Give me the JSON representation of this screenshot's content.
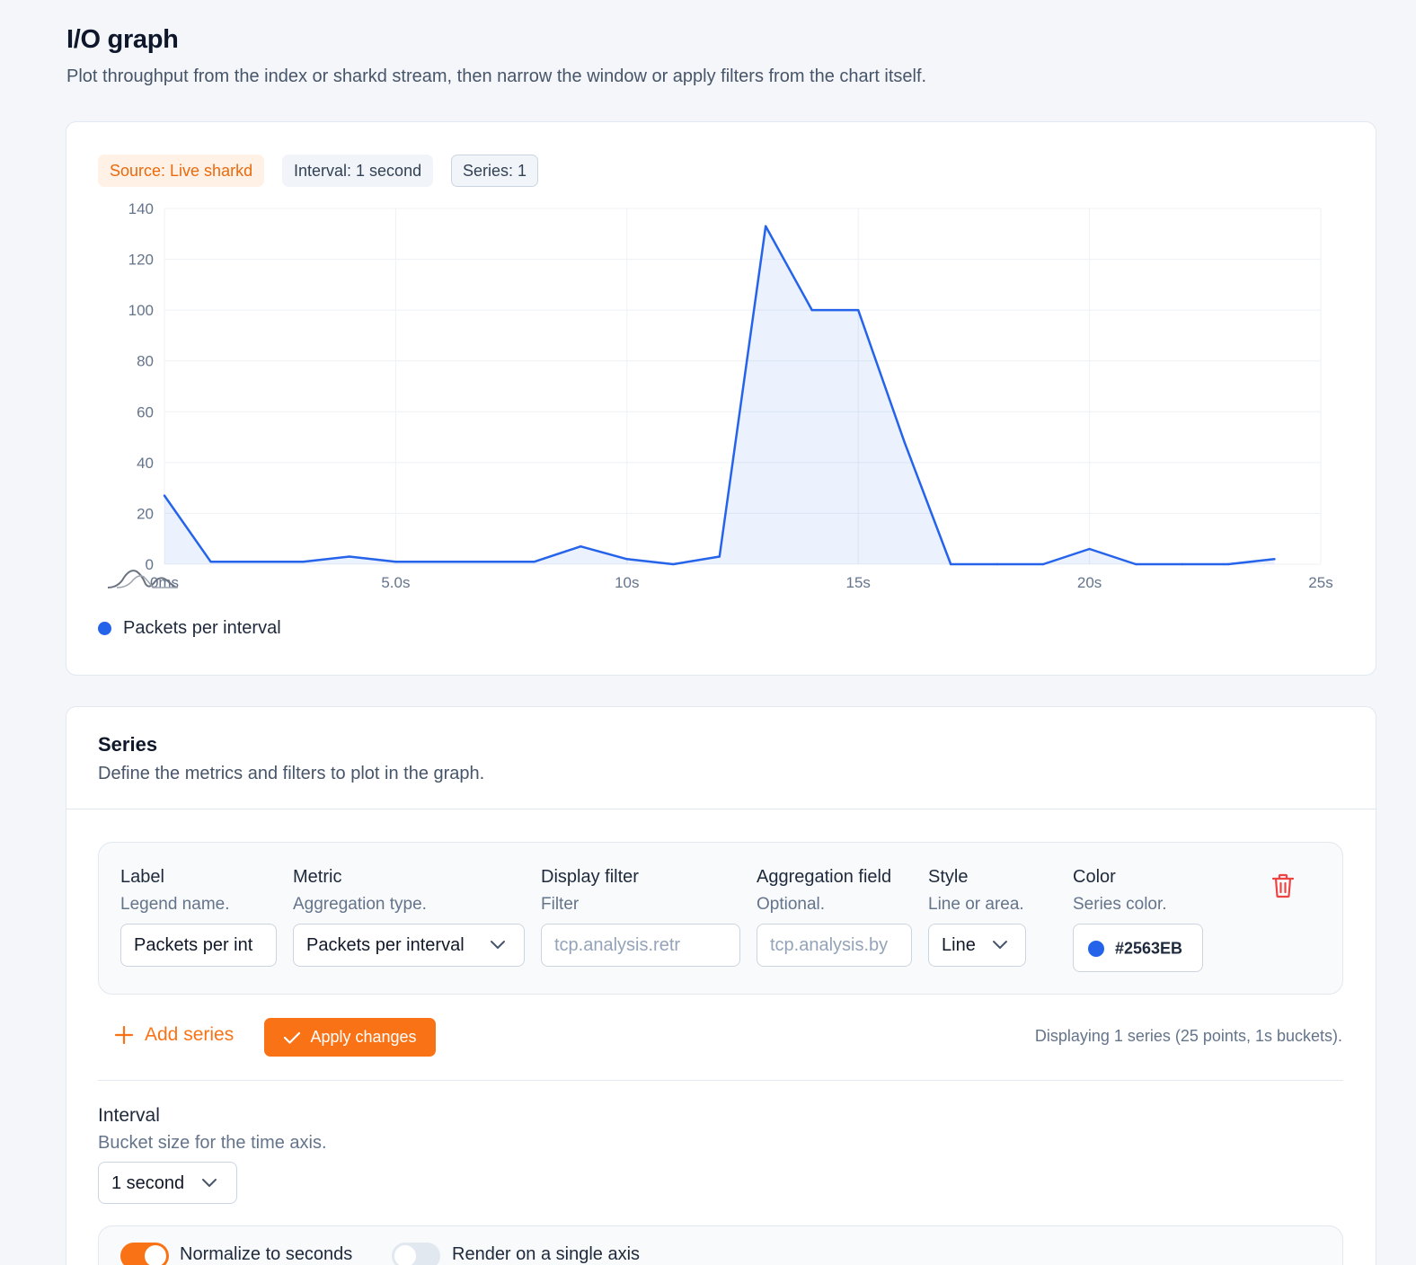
{
  "page": {
    "title": "I/O graph",
    "subtitle": "Plot throughput from the index or sharkd stream, then narrow the window or apply filters from the chart itself."
  },
  "badges": {
    "source": "Source: Live sharkd",
    "interval": "Interval: 1 second",
    "series": "Series: 1"
  },
  "chart_data": {
    "type": "area",
    "x_unit": "seconds",
    "x": [
      0,
      1,
      2,
      3,
      4,
      5,
      6,
      7,
      8,
      9,
      10,
      11,
      12,
      13,
      14,
      15,
      16,
      17,
      18,
      19,
      20,
      21,
      22,
      23,
      24
    ],
    "series": [
      {
        "name": "Packets per interval",
        "color": "#2563EB",
        "values": [
          27,
          1,
          1,
          1,
          3,
          1,
          1,
          1,
          1,
          7,
          2,
          0,
          3,
          133,
          100,
          100,
          48,
          0,
          0,
          0,
          6,
          0,
          0,
          0,
          2
        ]
      }
    ],
    "xlim": [
      0,
      25
    ],
    "ylim": [
      0,
      140
    ],
    "x_ticks": [
      "0ms",
      "5.0s",
      "10s",
      "15s",
      "20s",
      "25s"
    ],
    "y_ticks": [
      "0",
      "20",
      "40",
      "60",
      "80",
      "100",
      "120",
      "140"
    ],
    "grid": true,
    "legend": "bottom-left"
  },
  "series_section": {
    "title": "Series",
    "description": "Define the metrics and filters to plot in the graph.",
    "fields": {
      "label": {
        "title": "Label",
        "hint": "Legend name.",
        "value": "Packets per int"
      },
      "metric": {
        "title": "Metric",
        "hint": "Aggregation type.",
        "value": "Packets per interval"
      },
      "display_filter": {
        "title": "Display filter",
        "hint": "Filter",
        "placeholder": "tcp.analysis.retr"
      },
      "aggregation_field": {
        "title": "Aggregation field",
        "hint": "Optional.",
        "placeholder": "tcp.analysis.by"
      },
      "style": {
        "title": "Style",
        "hint": "Line or area.",
        "value": "Line"
      },
      "color": {
        "title": "Color",
        "hint": "Series color.",
        "value": "#2563EB"
      }
    },
    "add_series_label": "Add series",
    "apply_label": "Apply changes",
    "status": "Displaying 1 series (25 points, 1s buckets)."
  },
  "interval_section": {
    "title": "Interval",
    "hint": "Bucket size for the time axis.",
    "value": "1 second"
  },
  "options": {
    "normalize": {
      "label": "Normalize to seconds",
      "on": true
    },
    "single_axis": {
      "label": "Render on a single axis",
      "on": false
    }
  },
  "icons": {
    "trash": "trash-icon",
    "plus": "plus-icon",
    "check": "check-icon",
    "chevron": "chevron-down-icon",
    "watermark": "wave-watermark-icon"
  }
}
